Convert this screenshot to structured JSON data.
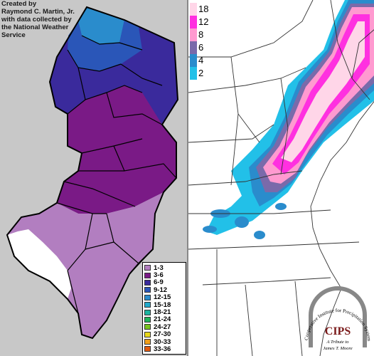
{
  "credit": {
    "line1": "Created by",
    "line2": "Raymond C. Martin, Jr.",
    "line3": "with data collected by",
    "line4": "the National Weather",
    "line5": "Service"
  },
  "nj_legend": [
    {
      "label": "1-3",
      "color": "#b27ec0"
    },
    {
      "label": "3-6",
      "color": "#7a1a86"
    },
    {
      "label": "6-9",
      "color": "#3a2a9c"
    },
    {
      "label": "9-12",
      "color": "#2a56b8"
    },
    {
      "label": "12-15",
      "color": "#2a8ccc"
    },
    {
      "label": "15-18",
      "color": "#22aacc"
    },
    {
      "label": "18-21",
      "color": "#1cb4a0"
    },
    {
      "label": "21-24",
      "color": "#20b45a"
    },
    {
      "label": "24-27",
      "color": "#78c41e"
    },
    {
      "label": "27-30",
      "color": "#e8d81a"
    },
    {
      "label": "30-33",
      "color": "#f0a01a"
    },
    {
      "label": "33-36",
      "color": "#e05a10"
    }
  ],
  "ne_legend": [
    {
      "label": "18",
      "color": "#ffd6e8"
    },
    {
      "label": "12",
      "color": "#ff30e0"
    },
    {
      "label": "8",
      "color": "#ff9ad0"
    },
    {
      "label": "6",
      "color": "#7a6aaa"
    },
    {
      "label": "4",
      "color": "#2a8ccc"
    },
    {
      "label": "2",
      "color": "#22c0e8"
    }
  ],
  "logo": {
    "arc_text": "Cooperative Institute for Precipitation Systems",
    "name": "CIPS",
    "tribute_line1": "A Tribute to",
    "tribute_line2": "James T. Moore"
  }
}
